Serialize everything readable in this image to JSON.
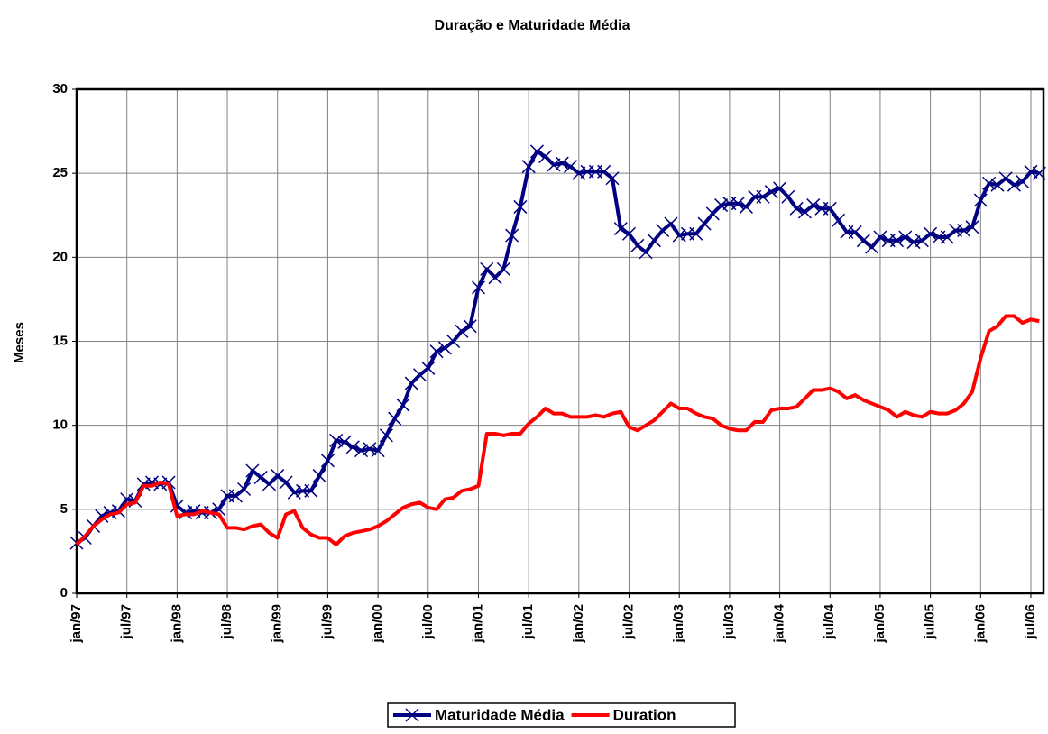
{
  "chart_data": {
    "type": "line",
    "title": "Duração e Maturidade Média",
    "ylabel": "Meses",
    "categories": [
      "jan/97",
      null,
      null,
      null,
      null,
      null,
      "jul/97",
      null,
      null,
      null,
      null,
      null,
      "jan/98",
      null,
      null,
      null,
      null,
      null,
      "jul/98",
      null,
      null,
      null,
      null,
      null,
      "jan/99",
      null,
      null,
      null,
      null,
      null,
      "jul/99",
      null,
      null,
      null,
      null,
      null,
      "jan/00",
      null,
      null,
      null,
      null,
      null,
      "jul/00",
      null,
      null,
      null,
      null,
      null,
      "jan/01",
      null,
      null,
      null,
      null,
      null,
      "jul/01",
      null,
      null,
      null,
      null,
      null,
      "jan/02",
      null,
      null,
      null,
      null,
      null,
      "jul/02",
      null,
      null,
      null,
      null,
      null,
      "jan/03",
      null,
      null,
      null,
      null,
      null,
      "jul/03",
      null,
      null,
      null,
      null,
      null,
      "jan/04",
      null,
      null,
      null,
      null,
      null,
      "jul/04",
      null,
      null,
      null,
      null,
      null,
      "jan/05",
      null,
      null,
      null,
      null,
      null,
      "jul/05",
      null,
      null,
      null,
      null,
      null,
      "jan/06",
      null,
      null,
      null,
      null,
      null,
      "jul/06",
      null
    ],
    "series": [
      {
        "name": "Maturidade Média",
        "color": "#000080",
        "marker": "x",
        "values": [
          3.0,
          3.3,
          4.0,
          4.6,
          4.8,
          4.9,
          5.6,
          5.5,
          6.5,
          6.6,
          6.5,
          6.6,
          5.2,
          4.8,
          4.9,
          4.8,
          4.8,
          5.0,
          5.8,
          5.8,
          6.2,
          7.3,
          6.9,
          6.5,
          7.0,
          6.6,
          6.0,
          6.1,
          6.1,
          7.0,
          7.9,
          9.1,
          9.0,
          8.7,
          8.5,
          8.6,
          8.5,
          9.4,
          10.4,
          11.2,
          12.5,
          13.0,
          13.4,
          14.4,
          14.6,
          15.0,
          15.6,
          15.9,
          18.2,
          19.3,
          18.8,
          19.3,
          21.3,
          23.0,
          25.4,
          26.3,
          26.0,
          25.5,
          25.6,
          25.4,
          25.0,
          25.1,
          25.1,
          25.1,
          24.7,
          21.7,
          21.4,
          20.7,
          20.3,
          21.0,
          21.6,
          22.0,
          21.3,
          21.4,
          21.4,
          22.0,
          22.6,
          23.1,
          23.2,
          23.2,
          23.0,
          23.6,
          23.6,
          23.9,
          24.1,
          23.6,
          22.9,
          22.7,
          23.1,
          22.9,
          22.9,
          22.2,
          21.5,
          21.5,
          21.0,
          20.6,
          21.2,
          21.0,
          21.0,
          21.2,
          20.9,
          21.0,
          21.4,
          21.2,
          21.2,
          21.6,
          21.6,
          21.8,
          23.4,
          24.4,
          24.3,
          24.7,
          24.3,
          24.5,
          25.1,
          25.0
        ]
      },
      {
        "name": "Duration",
        "color": "#ff0000",
        "values": [
          2.9,
          3.4,
          4.0,
          4.4,
          4.7,
          4.8,
          5.3,
          5.4,
          6.4,
          6.4,
          6.6,
          6.5,
          4.6,
          4.7,
          4.7,
          4.9,
          4.8,
          4.7,
          3.9,
          3.9,
          3.8,
          4.0,
          4.1,
          3.6,
          3.3,
          4.7,
          4.9,
          3.9,
          3.5,
          3.3,
          3.3,
          2.9,
          3.4,
          3.6,
          3.7,
          3.8,
          4.0,
          4.3,
          4.7,
          5.1,
          5.3,
          5.4,
          5.1,
          5.0,
          5.6,
          5.7,
          6.1,
          6.2,
          6.4,
          9.5,
          9.5,
          9.4,
          9.5,
          9.5,
          10.1,
          10.5,
          11.0,
          10.7,
          10.7,
          10.5,
          10.5,
          10.5,
          10.6,
          10.5,
          10.7,
          10.8,
          9.9,
          9.7,
          10.0,
          10.3,
          10.8,
          11.3,
          11.0,
          11.0,
          10.7,
          10.5,
          10.4,
          10.0,
          9.8,
          9.7,
          9.7,
          10.2,
          10.2,
          10.9,
          11.0,
          11.0,
          11.1,
          11.6,
          12.1,
          12.1,
          12.2,
          12.0,
          11.6,
          11.8,
          11.5,
          11.3,
          11.1,
          10.9,
          10.5,
          10.8,
          10.6,
          10.5,
          10.8,
          10.7,
          10.7,
          10.9,
          11.3,
          12.0,
          14.0,
          15.6,
          15.9,
          16.5,
          16.5,
          16.1,
          16.3,
          16.2
        ]
      }
    ],
    "ylim": [
      0,
      30
    ],
    "yticks": [
      0,
      5,
      10,
      15,
      20,
      25,
      30
    ],
    "grid": true,
    "legend": "bottom"
  }
}
